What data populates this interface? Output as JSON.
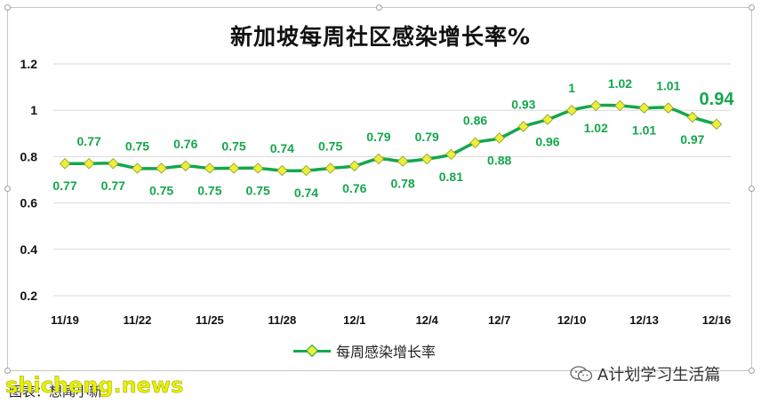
{
  "chart_data": {
    "type": "line",
    "title": "新加坡每周社区感染增长率%",
    "xlabel": "",
    "ylabel": "",
    "ylim": [
      0.2,
      1.2
    ],
    "yticks": [
      "0.2",
      "0.4",
      "0.6",
      "0.8",
      "1",
      "1.2"
    ],
    "grid": true,
    "legend_position": "bottom",
    "x": [
      "11/19",
      "11/20",
      "11/21",
      "11/22",
      "11/23",
      "11/24",
      "11/25",
      "11/26",
      "11/27",
      "11/28",
      "11/29",
      "11/30",
      "12/1",
      "12/2",
      "12/3",
      "12/4",
      "12/5",
      "12/6",
      "12/7",
      "12/8",
      "12/9",
      "12/10",
      "12/11",
      "12/12",
      "12/13",
      "12/14",
      "12/15",
      "12/16"
    ],
    "xticks": [
      "11/19",
      "11/22",
      "11/25",
      "11/28",
      "12/1",
      "12/4",
      "12/7",
      "12/10",
      "12/13",
      "12/16"
    ],
    "series": [
      {
        "name": "每周感染增长率",
        "values": [
          0.77,
          0.77,
          0.77,
          0.75,
          0.75,
          0.76,
          0.75,
          0.75,
          0.75,
          0.74,
          0.74,
          0.75,
          0.76,
          0.79,
          0.78,
          0.79,
          0.81,
          0.86,
          0.88,
          0.93,
          0.96,
          1,
          1.02,
          1.02,
          1.01,
          1.01,
          0.97,
          0.94
        ],
        "labels": [
          "0.77",
          "0.77",
          "0.77",
          "0.75",
          "0.75",
          "0.76",
          "0.75",
          "0.75",
          "0.75",
          "0.74",
          "0.74",
          "0.75",
          "0.76",
          "0.79",
          "0.78",
          "0.79",
          "0.81",
          "0.86",
          "0.88",
          "0.93",
          "0.96",
          "1",
          "1.02",
          "1.02",
          "1.01",
          "1.01",
          "0.97",
          "0.94"
        ],
        "label_positions": [
          "below",
          "above",
          "below",
          "above",
          "below",
          "above",
          "below",
          "above",
          "below",
          "above",
          "below",
          "above",
          "below",
          "above",
          "below",
          "above",
          "below",
          "above",
          "below",
          "above",
          "below",
          "above",
          "below",
          "above",
          "below",
          "above",
          "below",
          "above"
        ],
        "highlight_last": true
      }
    ],
    "colors": {
      "line": "#13a74b",
      "marker_fill": "#ecef3a",
      "label": "#13a74b",
      "grid": "#d9d9d9",
      "axis_text": "#111111"
    }
  },
  "legend": {
    "label": "每周感染增长率"
  },
  "source_note": "图表：想闻小新",
  "watermark": "shicheng.news",
  "account": {
    "name": "A计划学习生活篇",
    "icon": "wechat-icon"
  }
}
